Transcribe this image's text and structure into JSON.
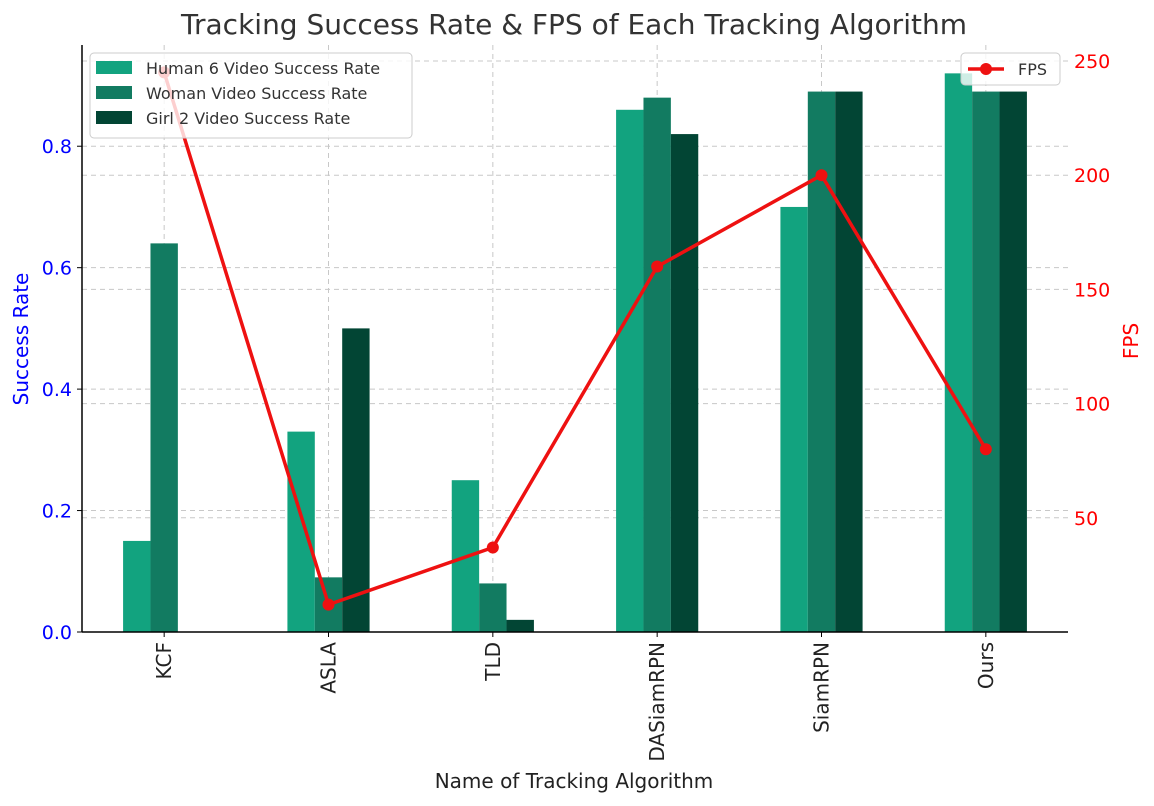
{
  "chart_data": {
    "type": "bar",
    "title": "Tracking Success Rate & FPS of Each Tracking Algorithm",
    "xlabel": "Name of Tracking Algorithm",
    "ylabel": "Success Rate",
    "y2label": "FPS",
    "categories": [
      "KCF",
      "ASLA",
      "TLD",
      "DASiamRPN",
      "SiamRPN",
      "Ours"
    ],
    "ylim": [
      0,
      0.9667
    ],
    "yticks": [
      0.0,
      0.2,
      0.4,
      0.6,
      0.8
    ],
    "ytick_labels": [
      "0.0",
      "0.2",
      "0.4",
      "0.6",
      "0.8"
    ],
    "y2lim": [
      0,
      257
    ],
    "y2ticks": [
      50,
      100,
      150,
      200,
      250
    ],
    "y2tick_labels": [
      "50",
      "100",
      "150",
      "200",
      "250"
    ],
    "series": [
      {
        "name": "Human 6 Video Success Rate",
        "color": "#12a37f",
        "values": [
          0.15,
          0.33,
          0.25,
          0.86,
          0.7,
          0.92
        ]
      },
      {
        "name": "Woman Video Success Rate",
        "color": "#127b61",
        "values": [
          0.64,
          0.09,
          0.08,
          0.88,
          0.89,
          0.89
        ]
      },
      {
        "name": "Girl 2 Video Success Rate",
        "color": "#024534",
        "values": [
          0.0,
          0.5,
          0.02,
          0.82,
          0.89,
          0.89
        ]
      }
    ],
    "line_series": {
      "name": "FPS",
      "color": "#ee1111",
      "axis": "right",
      "values": [
        245,
        12,
        37,
        160,
        200,
        80
      ]
    },
    "legend_bars_position": "upper-left",
    "legend_line_position": "upper-right",
    "grid": true
  }
}
